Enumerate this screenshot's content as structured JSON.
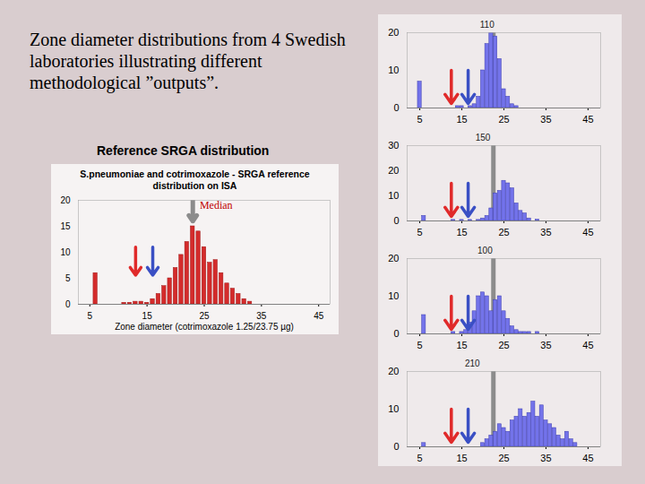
{
  "slide": {
    "title": "Zone diameter distributions from 4 Swedish laboratories illustrating different methodological ”outputs”.",
    "heading": "Reference SRGA distribution"
  },
  "chart_data": [
    {
      "type": "bar",
      "title": "S.pneumoniae and cotrimoxazole - SRGA reference distribution on ISA",
      "xlabel": "Zone diameter (cotrimoxazole 1.25/23.75 µg)",
      "x": [
        6,
        11,
        12,
        13,
        14,
        15,
        16,
        17,
        18,
        19,
        20,
        21,
        22,
        23,
        24,
        25,
        26,
        27,
        28,
        29,
        30,
        31,
        32,
        33
      ],
      "values": [
        6,
        0.3,
        0.3,
        0.5,
        0.5,
        0.3,
        1,
        2,
        3.5,
        5,
        7,
        9.5,
        12,
        15,
        14,
        11,
        8,
        8.5,
        6,
        4,
        3,
        2,
        1,
        0.5
      ],
      "color": "#d42b2b",
      "xlim": [
        3,
        47
      ],
      "xticks": [
        5,
        15,
        25,
        35,
        45
      ],
      "ylim": [
        0,
        20
      ],
      "yticks": [
        0,
        5,
        10,
        15,
        20
      ],
      "arrows": [
        {
          "x": 13,
          "color": "#e02a2a"
        },
        {
          "x": 16,
          "color": "#3a4fc4"
        }
      ],
      "median": {
        "x": 23,
        "label": "Median"
      }
    },
    {
      "type": "bar",
      "x": [
        5,
        14,
        15,
        17,
        18,
        19,
        20,
        21,
        22,
        23,
        24,
        25,
        26,
        27,
        28
      ],
      "values": [
        7,
        0.5,
        0.5,
        0.5,
        1,
        3,
        10,
        17,
        20,
        19,
        13,
        5,
        3,
        1,
        0.5
      ],
      "color": "#7373ea",
      "xlim": [
        2,
        48
      ],
      "xticks": [
        5,
        15,
        25,
        35,
        45
      ],
      "ylim": [
        0,
        20
      ],
      "yticks": [
        0,
        10,
        20
      ],
      "arrows": [
        {
          "x": 12.5,
          "color": "#e02a2a"
        },
        {
          "x": 16.5,
          "color": "#3a4fc4"
        }
      ],
      "annotations": [
        {
          "x": 21,
          "text": "110"
        }
      ],
      "reference_line": 22.5
    },
    {
      "type": "bar",
      "x": [
        6,
        13,
        15,
        17,
        19,
        20,
        21,
        22,
        23,
        24,
        25,
        26,
        27,
        28,
        29,
        30,
        31,
        33
      ],
      "values": [
        2,
        0.4,
        0.4,
        0.4,
        0.4,
        1,
        2,
        5,
        11,
        12,
        16,
        15,
        13,
        7,
        4,
        3,
        1,
        0.5
      ],
      "color": "#7373ea",
      "xlim": [
        2,
        48
      ],
      "xticks": [
        5,
        15,
        25,
        35,
        45
      ],
      "ylim": [
        0,
        30
      ],
      "yticks": [
        0,
        10,
        20,
        30
      ],
      "arrows": [
        {
          "x": 12.5,
          "color": "#e02a2a"
        },
        {
          "x": 16.5,
          "color": "#3a4fc4"
        }
      ],
      "annotations": [
        {
          "x": 20,
          "text": "150"
        }
      ],
      "reference_line": 22.5
    },
    {
      "type": "bar",
      "x": [
        6,
        13,
        15,
        16,
        17,
        18,
        19,
        20,
        21,
        22,
        23,
        24,
        25,
        26,
        27,
        28,
        29,
        30,
        31,
        33
      ],
      "values": [
        5,
        0.5,
        0.5,
        1,
        3,
        6,
        10,
        11,
        10,
        6,
        9,
        10,
        6,
        4,
        2,
        1,
        0.5,
        0.5,
        0.5,
        0.5
      ],
      "color": "#7373ea",
      "xlim": [
        2,
        48
      ],
      "xticks": [
        5,
        15,
        25,
        35,
        45
      ],
      "ylim": [
        0,
        20
      ],
      "yticks": [
        0,
        10,
        20
      ],
      "arrows": [
        {
          "x": 12.5,
          "color": "#e02a2a"
        },
        {
          "x": 16.5,
          "color": "#3a4fc4"
        }
      ],
      "annotations": [
        {
          "x": 20.5,
          "text": "100"
        }
      ],
      "reference_line": 22.5
    },
    {
      "type": "bar",
      "x": [
        6,
        20,
        21,
        22,
        23,
        24,
        25,
        26,
        27,
        28,
        29,
        30,
        31,
        32,
        33,
        34,
        35,
        36,
        37,
        38,
        39,
        40,
        41,
        42
      ],
      "values": [
        1,
        1,
        2,
        3,
        4,
        6,
        5,
        4,
        7,
        8,
        10,
        8,
        9,
        12,
        8,
        11,
        7,
        6,
        5,
        3,
        2,
        4,
        2,
        1
      ],
      "color": "#7373ea",
      "xlim": [
        2,
        48
      ],
      "xticks": [
        5,
        15,
        25,
        35,
        45
      ],
      "ylim": [
        0,
        20
      ],
      "yticks": [
        0,
        10,
        20
      ],
      "arrows": [
        {
          "x": 12.5,
          "color": "#e02a2a"
        },
        {
          "x": 16.5,
          "color": "#3a4fc4"
        }
      ],
      "annotations": [
        {
          "x": 17.5,
          "text": "210"
        }
      ],
      "reference_line": 22.5
    }
  ]
}
